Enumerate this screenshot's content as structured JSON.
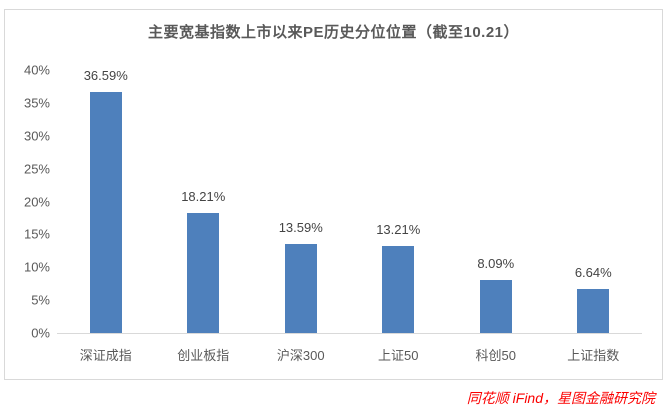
{
  "chart_data": {
    "type": "bar",
    "title": "主要宽基指数上市以来PE历史分位位置（截至10.21）",
    "categories": [
      "深证成指",
      "创业板指",
      "沪深300",
      "上证50",
      "科创50",
      "上证指数"
    ],
    "values": [
      36.59,
      18.21,
      13.59,
      13.21,
      8.09,
      6.64
    ],
    "value_labels": [
      "36.59%",
      "18.21%",
      "13.59%",
      "13.21%",
      "8.09%",
      "6.64%"
    ],
    "xlabel": "",
    "ylabel": "",
    "ylim": [
      0,
      40
    ],
    "y_tick_step": 5,
    "y_tick_labels": [
      "0%",
      "5%",
      "10%",
      "15%",
      "20%",
      "25%",
      "30%",
      "35%",
      "40%"
    ],
    "grid": false,
    "legend": "none",
    "bar_color": "#4e80bc"
  },
  "footer": {
    "source_text": "同花顺 iFind，星图金融研究院",
    "color": "#fb0000"
  }
}
